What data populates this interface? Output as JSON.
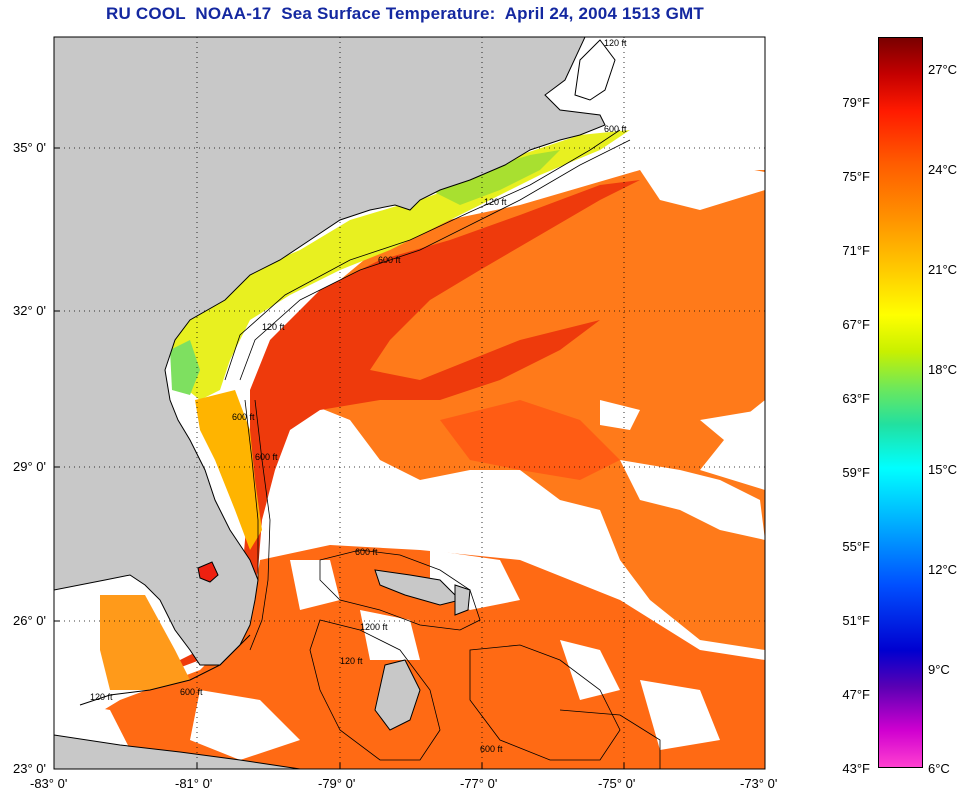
{
  "title": "RU COOL  NOAA-17  Sea Surface Temperature:  April 24, 2004 1513 GMT",
  "lat_labels": [
    "35° 0'",
    "32° 0'",
    "29° 0'",
    "26° 0'",
    "23° 0'"
  ],
  "lon_labels": [
    "-83° 0'",
    "-81° 0'",
    "-79° 0'",
    "-77° 0'",
    "-75° 0'",
    "-73° 0'"
  ],
  "colorbar": {
    "fahrenheit": [
      "79°F",
      "75°F",
      "71°F",
      "67°F",
      "63°F",
      "59°F",
      "55°F",
      "51°F",
      "47°F",
      "43°F"
    ],
    "celsius": [
      "27°C",
      "24°C",
      "21°C",
      "18°C",
      "15°C",
      "12°C",
      "9°C",
      "6°C"
    ]
  },
  "contour_labels": {
    "c120a": "120 ft",
    "c600a": "600 ft",
    "c120b": "120 ft",
    "c600b": "600 ft",
    "c1200": "1200 ft",
    "c600c": "600 ft",
    "c600d": "600 ft",
    "c120c": "120 ft",
    "c600e": "600 ft",
    "c120d": "120 ft",
    "c600f": "600 ft",
    "c120e": "120 ft",
    "c600g": "600 ft"
  },
  "colors": {
    "land": "#c8c8c8",
    "cloud": "#ffffff",
    "gulfstream": "#f23c0a",
    "ocean_warm": "#ff7a1a",
    "shelf": "#e8f020",
    "title": "#1428a0"
  }
}
